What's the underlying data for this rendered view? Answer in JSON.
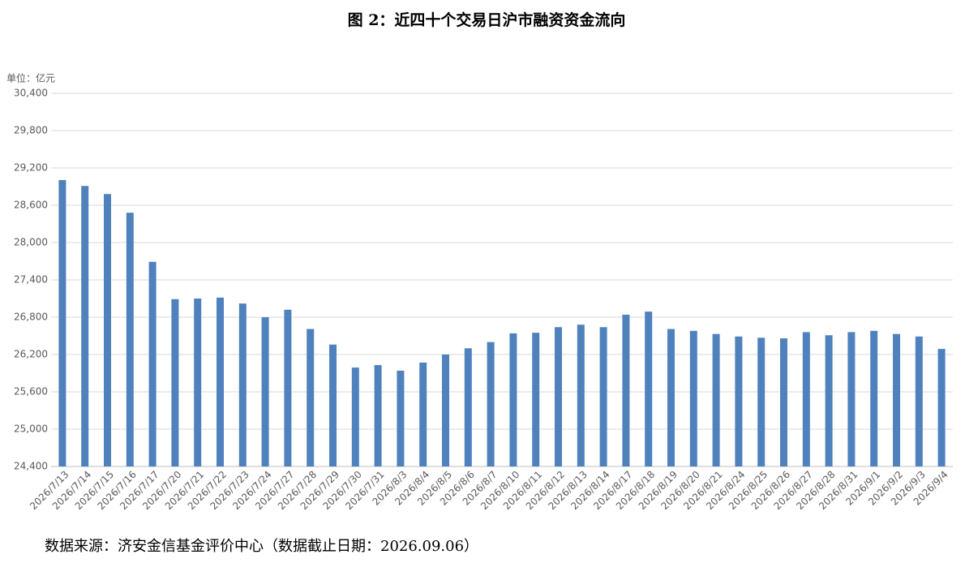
{
  "chart_data": {
    "type": "bar",
    "title": "图 2：近四十个交易日沪市融资资金流向",
    "y_unit_label": "单位：亿元",
    "source": "数据来源：济安金信基金评价中心（数据截止日期：2026.09.06）",
    "categories": [
      "2026/7/13",
      "2026/7/14",
      "2026/7/15",
      "2026/7/16",
      "2026/7/17",
      "2026/7/20",
      "2026/7/21",
      "2026/7/22",
      "2026/7/23",
      "2026/7/24",
      "2026/7/27",
      "2026/7/28",
      "2026/7/29",
      "2026/7/30",
      "2026/7/31",
      "2026/8/3",
      "2026/8/4",
      "2026/8/5",
      "2026/8/6",
      "2026/8/7",
      "2026/8/10",
      "2026/8/11",
      "2026/8/12",
      "2026/8/13",
      "2026/8/14",
      "2026/8/17",
      "2026/8/18",
      "2026/8/19",
      "2026/8/20",
      "2026/8/21",
      "2026/8/24",
      "2026/8/25",
      "2026/8/26",
      "2026/8/27",
      "2026/8/28",
      "2026/8/31",
      "2026/9/1",
      "2026/9/2",
      "2026/9/3",
      "2026/9/4"
    ],
    "values": [
      29005,
      28910,
      28780,
      28480,
      27690,
      27090,
      27100,
      27115,
      27020,
      26800,
      26920,
      26610,
      26360,
      25990,
      26030,
      25940,
      26070,
      26200,
      26300,
      26400,
      26540,
      26550,
      26640,
      26680,
      26640,
      26840,
      26890,
      26610,
      26580,
      26530,
      26490,
      26470,
      26460,
      26560,
      26510,
      26560,
      26580,
      26530,
      26490,
      26290
    ],
    "color": "#4f81bd",
    "ylim": [
      24400,
      30400
    ],
    "yticks": [
      {
        "value": 24400,
        "label": "24,400"
      },
      {
        "value": 25000,
        "label": "25,000"
      },
      {
        "value": 25600,
        "label": "25,600"
      },
      {
        "value": 26200,
        "label": "26,200"
      },
      {
        "value": 26800,
        "label": "26,800"
      },
      {
        "value": 27400,
        "label": "27,400"
      },
      {
        "value": 28000,
        "label": "28,000"
      },
      {
        "value": 28600,
        "label": "28,600"
      },
      {
        "value": 29200,
        "label": "29,200"
      },
      {
        "value": 29800,
        "label": "29,800"
      },
      {
        "value": 30400,
        "label": "30,400"
      }
    ],
    "grid": true
  }
}
